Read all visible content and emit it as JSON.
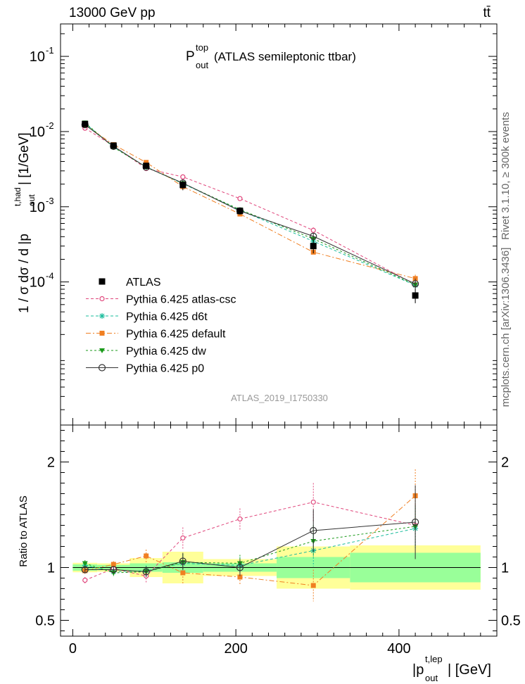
{
  "header": {
    "left": "13000 GeV pp",
    "right": "tt̄"
  },
  "side_labels": {
    "rivet": "Rivet 3.1.10, ≥ 300k events",
    "mcplots": "mcplots.cern.ch [arXiv:1306.3436]"
  },
  "chart_data": {
    "type": "line",
    "title_main": "P",
    "title_sup": "top",
    "title_sub": "out",
    "title_rest": "(ATLAS semileptonic ttbar)",
    "watermark": "ATLAS_2019_I1750330",
    "ylabel": "1 / σ dσ / d |p",
    "ylabel_sup": "t,had",
    "ylabel_sub": "out",
    "ylabel_end": "| [1/GeV]",
    "ratio_ylabel": "Ratio to ATLAS",
    "xlabel": "|p",
    "xlabel_sup": "t,lep",
    "xlabel_sub": "out",
    "xlabel_end": "| [GeV]",
    "xlim": [
      -15,
      520
    ],
    "ylim": [
      1.25e-06,
      0.27
    ],
    "ratio_ylim": [
      0.35,
      2.35
    ],
    "x_ticks": [
      "0",
      "200",
      "400"
    ],
    "y_ticks": [
      "10",
      "10",
      "10",
      "10"
    ],
    "y_tick_exps": [
      "-1",
      "-2",
      "-3",
      "-4"
    ],
    "ratio_ticks": [
      "2",
      "1",
      "0.5"
    ],
    "bins": [
      {
        "lo": 0,
        "hi": 30,
        "x": 15
      },
      {
        "lo": 30,
        "hi": 70,
        "x": 50
      },
      {
        "lo": 70,
        "hi": 110,
        "x": 90
      },
      {
        "lo": 110,
        "hi": 160,
        "x": 135
      },
      {
        "lo": 160,
        "hi": 250,
        "x": 205
      },
      {
        "lo": 250,
        "hi": 340,
        "x": 295
      },
      {
        "lo": 340,
        "hi": 500,
        "x": 420
      }
    ],
    "data": {
      "name": "ATLAS",
      "values": [
        0.0126,
        0.0065,
        0.0035,
        0.00195,
        0.00088,
        0.0003,
        6.6e-05
      ],
      "err_stat": [
        0.03,
        0.025,
        0.04,
        0.05,
        0.04,
        0.1,
        0.14
      ],
      "err_total": [
        0.045,
        0.04,
        0.09,
        0.15,
        0.08,
        0.2,
        0.21
      ]
    },
    "series": [
      {
        "name": "Pythia 6.425 atlas-csc",
        "color": "#e0457b",
        "dash": "4,3",
        "marker": "open-circle",
        "ratio": [
          0.88,
          0.99,
          0.92,
          1.28,
          1.46,
          1.62,
          1.4
        ],
        "ratio_err": [
          0.03,
          0.03,
          0.06,
          0.1,
          0.1,
          0.18,
          0.2
        ]
      },
      {
        "name": "Pythia 6.425 d6t",
        "color": "#1abc9c",
        "dash": "4,3",
        "marker": "star",
        "ratio": [
          1.02,
          0.96,
          0.97,
          1.04,
          1.02,
          1.16,
          1.37
        ],
        "ratio_err": [
          0.03,
          0.03,
          0.05,
          0.08,
          0.08,
          0.15,
          0.2
        ]
      },
      {
        "name": "Pythia 6.425 default",
        "color": "#f07f22",
        "dash": "7,3,2,3",
        "marker": "filled-square",
        "ratio": [
          0.97,
          1.03,
          1.11,
          0.95,
          0.91,
          0.83,
          1.68
        ],
        "ratio_err": [
          0.03,
          0.03,
          0.06,
          0.1,
          0.08,
          0.15,
          0.25
        ]
      },
      {
        "name": "Pythia 6.425 dw",
        "color": "#1a9a1a",
        "dash": "3,3",
        "marker": "filled-triangle-down",
        "ratio": [
          1.04,
          0.95,
          0.96,
          1.05,
          1.04,
          1.25,
          1.39
        ],
        "ratio_err": [
          0.03,
          0.03,
          0.05,
          0.08,
          0.08,
          0.15,
          0.2
        ]
      },
      {
        "name": "Pythia 6.425 p0",
        "color": "#333333",
        "dash": "",
        "marker": "open-circle-big",
        "ratio": [
          0.98,
          0.98,
          0.96,
          1.06,
          1.0,
          1.35,
          1.43
        ],
        "ratio_err": [
          0.03,
          0.03,
          0.05,
          0.08,
          0.08,
          0.2,
          0.35
        ]
      }
    ]
  }
}
